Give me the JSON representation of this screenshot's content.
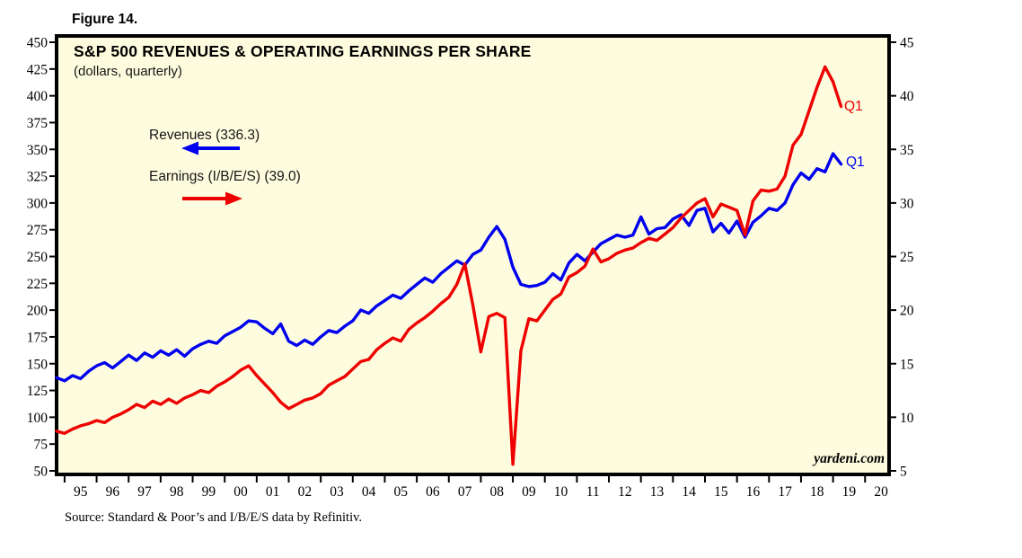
{
  "figure_label": "Figure 14.",
  "source_note": "Source: Standard & Poor’s and I/B/E/S data by Refinitiv.",
  "chart": {
    "title": "S&P 500 REVENUES & OPERATING EARNINGS PER SHARE",
    "subtitle": "(dollars, quarterly)",
    "watermark": "yardeni.com",
    "colors": {
      "background": "#fefcdf",
      "frame": "#000000",
      "revenues": "#0000ee",
      "earnings": "#ee0000"
    },
    "legend": [
      {
        "label": "Revenues (336.3)",
        "series": "revenues",
        "arrow_direction": "left",
        "color": "#0000ee"
      },
      {
        "label": "Earnings (I/B/E/S) (39.0)",
        "series": "earnings",
        "arrow_direction": "right",
        "color": "#ee0000"
      }
    ]
  },
  "chart_data": {
    "type": "line",
    "title": "S&P 500 REVENUES & OPERATING EARNINGS PER SHARE",
    "subtitle": "(dollars, quarterly)",
    "grid": false,
    "legend_position": "upper-left-inside",
    "x": {
      "start": 1994.75,
      "step": 0.25,
      "unit": "quarter",
      "axis_range": [
        1994.75,
        2020.75
      ],
      "tick_labels": [
        "95",
        "96",
        "97",
        "98",
        "99",
        "00",
        "01",
        "02",
        "03",
        "04",
        "05",
        "06",
        "07",
        "08",
        "09",
        "10",
        "11",
        "12",
        "13",
        "14",
        "15",
        "16",
        "17",
        "18",
        "19",
        "20"
      ]
    },
    "y_left": {
      "range": [
        50,
        450
      ],
      "tick_interval": 25,
      "ticks": [
        450,
        425,
        400,
        375,
        350,
        325,
        300,
        275,
        250,
        225,
        200,
        175,
        150,
        125,
        100,
        75,
        50
      ]
    },
    "y_right": {
      "range": [
        5,
        45
      ],
      "tick_interval": 5,
      "ticks": [
        45,
        40,
        35,
        30,
        25,
        20,
        15,
        10,
        5
      ]
    },
    "series": [
      {
        "name": "Revenues",
        "axis": "left",
        "color": "#0000ee",
        "end_label": "Q1",
        "latest_value": 336.3,
        "values": [
          137,
          134,
          139,
          136,
          143,
          148,
          151,
          146,
          152,
          158,
          153,
          160,
          156,
          162,
          158,
          163,
          157,
          164,
          168,
          171,
          169,
          176,
          180,
          184,
          190,
          189,
          183,
          178,
          187,
          171,
          167,
          172,
          168,
          175,
          181,
          179,
          185,
          190,
          200,
          197,
          204,
          209,
          214,
          211,
          218,
          224,
          230,
          226,
          234,
          240,
          246,
          242,
          252,
          256,
          268,
          278,
          266,
          240,
          224,
          222,
          223,
          226,
          234,
          228,
          244,
          252,
          246,
          254,
          262,
          266,
          270,
          268,
          270,
          287,
          271,
          276,
          277,
          285,
          289,
          279,
          293,
          295,
          273,
          281,
          272,
          283,
          268,
          282,
          288,
          295,
          293,
          300,
          317,
          328,
          322,
          332,
          329,
          346,
          336.3
        ]
      },
      {
        "name": "Earnings (I/B/E/S)",
        "axis": "right",
        "color": "#ee0000",
        "end_label": "Q1",
        "latest_value": 39.0,
        "values": [
          8.7,
          8.5,
          8.9,
          9.2,
          9.4,
          9.7,
          9.5,
          10.0,
          10.3,
          10.7,
          11.2,
          10.9,
          11.5,
          11.2,
          11.7,
          11.3,
          11.8,
          12.1,
          12.5,
          12.3,
          12.9,
          13.3,
          13.8,
          14.4,
          14.8,
          13.9,
          13.1,
          12.3,
          11.4,
          10.8,
          11.2,
          11.6,
          11.8,
          12.2,
          13.0,
          13.4,
          13.8,
          14.5,
          15.2,
          15.4,
          16.3,
          16.9,
          17.4,
          17.1,
          18.2,
          18.8,
          19.3,
          19.9,
          20.6,
          21.2,
          22.4,
          24.3,
          20.5,
          16.1,
          19.4,
          19.7,
          19.3,
          5.6,
          16.2,
          19.2,
          19.0,
          20.0,
          21.0,
          21.5,
          23.1,
          23.5,
          24.1,
          25.7,
          24.5,
          24.8,
          25.3,
          25.6,
          25.8,
          26.3,
          26.7,
          26.5,
          27.1,
          27.7,
          28.6,
          29.3,
          30.0,
          30.4,
          28.7,
          29.9,
          29.6,
          29.3,
          27.0,
          30.2,
          31.2,
          31.1,
          31.3,
          32.5,
          35.4,
          36.4,
          38.6,
          40.8,
          42.7,
          41.3,
          39.0
        ]
      }
    ]
  }
}
